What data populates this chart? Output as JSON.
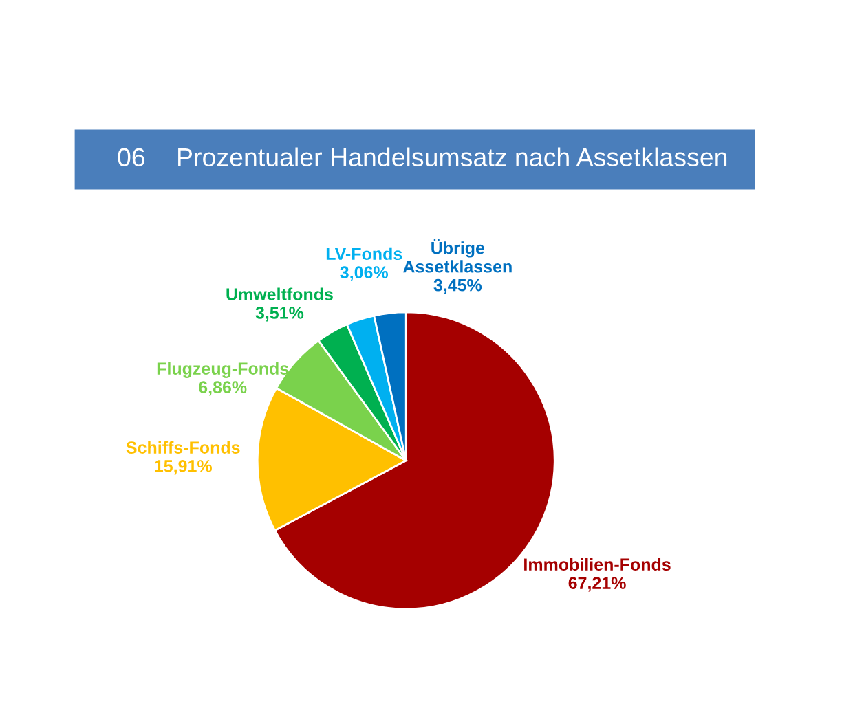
{
  "chart_data": {
    "type": "pie",
    "title": "06",
    "subtitle": "Prozentualer Handelsumsatz nach Assetklassen",
    "categories": [
      "Immobilien-Fonds",
      "Schiffs-Fonds",
      "Flugzeug-Fonds",
      "Umweltfonds",
      "LV-Fonds",
      "Übrige Assetklassen"
    ],
    "values": [
      67.21,
      15.91,
      6.86,
      3.51,
      3.06,
      3.45
    ],
    "value_labels": [
      "67,21%",
      "15,91%",
      "6,86%",
      "3,51%",
      "3,06%",
      "3,45%"
    ],
    "colors": [
      "#a50000",
      "#ffc000",
      "#7ad24c",
      "#00b050",
      "#00b0f0",
      "#0070c0"
    ]
  }
}
